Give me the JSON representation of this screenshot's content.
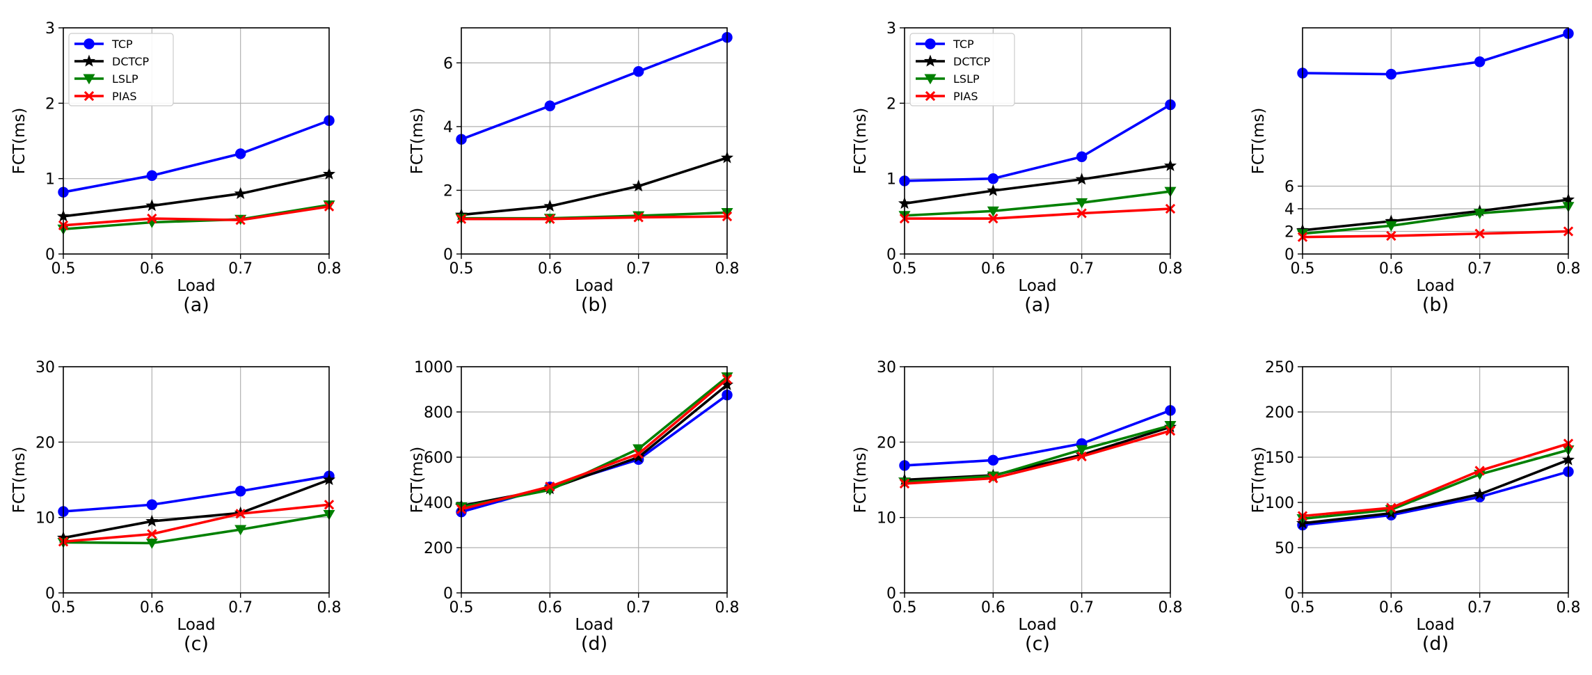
{
  "legend_entries": [
    {
      "name": "TCP",
      "color": "#0000ff",
      "marker": "circle"
    },
    {
      "name": "DCTCP",
      "color": "#000000",
      "marker": "star"
    },
    {
      "name": "LSLP",
      "color": "#008000",
      "marker": "triangle-down"
    },
    {
      "name": "PIAS",
      "color": "#ff0000",
      "marker": "x"
    }
  ],
  "chart_data": [
    {
      "type": "line",
      "caption": "(a)",
      "xlabel": "Load",
      "ylabel": "FCT(ms)",
      "x": [
        0.5,
        0.6,
        0.7,
        0.8
      ],
      "xlim": [
        0.5,
        0.8
      ],
      "xticks": [
        "0.5",
        "0.6",
        "0.7",
        "0.8"
      ],
      "ylim": [
        0,
        3
      ],
      "yticks": [
        0,
        1,
        2,
        3
      ],
      "grid": true,
      "legend": "top-left",
      "series": [
        {
          "name": "TCP",
          "values": [
            0.82,
            1.04,
            1.33,
            1.77
          ]
        },
        {
          "name": "DCTCP",
          "values": [
            0.5,
            0.64,
            0.8,
            1.06
          ]
        },
        {
          "name": "LSLP",
          "values": [
            0.33,
            0.42,
            0.46,
            0.65
          ]
        },
        {
          "name": "PIAS",
          "values": [
            0.38,
            0.47,
            0.45,
            0.63
          ]
        }
      ]
    },
    {
      "type": "line",
      "caption": "(b)",
      "xlabel": "Load",
      "ylabel": "FCT(ms)",
      "x": [
        0.5,
        0.6,
        0.7,
        0.8
      ],
      "xlim": [
        0.5,
        0.8
      ],
      "xticks": [
        "0.5",
        "0.6",
        "0.7",
        "0.8"
      ],
      "ylim": [
        0,
        7.1
      ],
      "yticks": [
        0,
        2,
        4,
        6
      ],
      "grid": true,
      "series": [
        {
          "name": "TCP",
          "values": [
            3.6,
            4.65,
            5.73,
            6.8
          ]
        },
        {
          "name": "DCTCP",
          "values": [
            1.23,
            1.5,
            2.13,
            3.02
          ]
        },
        {
          "name": "LSLP",
          "values": [
            1.12,
            1.12,
            1.2,
            1.3
          ]
        },
        {
          "name": "PIAS",
          "values": [
            1.1,
            1.1,
            1.15,
            1.18
          ]
        }
      ]
    },
    {
      "type": "line",
      "caption": "(a)",
      "xlabel": "Load",
      "ylabel": "FCT(ms)",
      "x": [
        0.5,
        0.6,
        0.7,
        0.8
      ],
      "xlim": [
        0.5,
        0.8
      ],
      "xticks": [
        "0.5",
        "0.6",
        "0.7",
        "0.8"
      ],
      "ylim": [
        0,
        3
      ],
      "yticks": [
        0,
        1,
        2,
        3
      ],
      "grid": true,
      "legend": "top-left",
      "series": [
        {
          "name": "TCP",
          "values": [
            0.97,
            1.0,
            1.29,
            1.98
          ]
        },
        {
          "name": "DCTCP",
          "values": [
            0.67,
            0.84,
            0.99,
            1.17
          ]
        },
        {
          "name": "LSLP",
          "values": [
            0.51,
            0.57,
            0.68,
            0.83
          ]
        },
        {
          "name": "PIAS",
          "values": [
            0.47,
            0.47,
            0.54,
            0.6
          ]
        }
      ]
    },
    {
      "type": "line",
      "caption": "(b)",
      "xlabel": "Load",
      "ylabel": "FCT(ms)",
      "x": [
        0.5,
        0.6,
        0.7,
        0.8
      ],
      "xlim": [
        0.5,
        0.8
      ],
      "xticks": [
        "0.5",
        "0.6",
        "0.7",
        "0.8"
      ],
      "ylim": [
        0,
        20
      ],
      "yticks": [
        0,
        2,
        4,
        6
      ],
      "grid": true,
      "series": [
        {
          "name": "TCP",
          "values": [
            16.0,
            15.9,
            17.0,
            19.5
          ]
        },
        {
          "name": "DCTCP",
          "values": [
            2.1,
            2.9,
            3.8,
            4.8
          ]
        },
        {
          "name": "LSLP",
          "values": [
            1.8,
            2.5,
            3.6,
            4.2
          ]
        },
        {
          "name": "PIAS",
          "values": [
            1.5,
            1.6,
            1.8,
            2.0
          ]
        }
      ]
    },
    {
      "type": "line",
      "caption": "(c)",
      "xlabel": "Load",
      "ylabel": "FCT(ms)",
      "x": [
        0.5,
        0.6,
        0.7,
        0.8
      ],
      "xlim": [
        0.5,
        0.8
      ],
      "xticks": [
        "0.5",
        "0.6",
        "0.7",
        "0.8"
      ],
      "ylim": [
        0,
        30
      ],
      "yticks": [
        0,
        10,
        20,
        30
      ],
      "grid": true,
      "series": [
        {
          "name": "TCP",
          "values": [
            10.8,
            11.7,
            13.5,
            15.5
          ]
        },
        {
          "name": "DCTCP",
          "values": [
            7.3,
            9.5,
            10.6,
            15.0
          ]
        },
        {
          "name": "LSLP",
          "values": [
            6.7,
            6.6,
            8.4,
            10.4
          ]
        },
        {
          "name": "PIAS",
          "values": [
            6.8,
            7.8,
            10.5,
            11.7
          ]
        }
      ]
    },
    {
      "type": "line",
      "caption": "(d)",
      "xlabel": "Load",
      "ylabel": "FCT(ms)",
      "x": [
        0.5,
        0.6,
        0.7,
        0.8
      ],
      "xlim": [
        0.5,
        0.8
      ],
      "xticks": [
        "0.5",
        "0.6",
        "0.7",
        "0.8"
      ],
      "ylim": [
        0,
        1000
      ],
      "yticks": [
        0,
        200,
        400,
        600,
        800,
        1000
      ],
      "grid": true,
      "series": [
        {
          "name": "TCP",
          "values": [
            358,
            468,
            590,
            875
          ]
        },
        {
          "name": "DCTCP",
          "values": [
            385,
            460,
            600,
            920
          ]
        },
        {
          "name": "LSLP",
          "values": [
            380,
            455,
            637,
            955
          ]
        },
        {
          "name": "PIAS",
          "values": [
            370,
            470,
            615,
            945
          ]
        }
      ]
    },
    {
      "type": "line",
      "caption": "(c)",
      "xlabel": "Load",
      "ylabel": "FCT(ms)",
      "x": [
        0.5,
        0.6,
        0.7,
        0.8
      ],
      "xlim": [
        0.5,
        0.8
      ],
      "xticks": [
        "0.5",
        "0.6",
        "0.7",
        "0.8"
      ],
      "ylim": [
        0,
        30
      ],
      "yticks": [
        0,
        10,
        20,
        30
      ],
      "grid": true,
      "series": [
        {
          "name": "TCP",
          "values": [
            16.9,
            17.6,
            19.8,
            24.2
          ]
        },
        {
          "name": "DCTCP",
          "values": [
            15.0,
            15.6,
            18.3,
            22.0
          ]
        },
        {
          "name": "LSLP",
          "values": [
            14.7,
            15.5,
            19.0,
            22.2
          ]
        },
        {
          "name": "PIAS",
          "values": [
            14.5,
            15.2,
            18.1,
            21.5
          ]
        }
      ]
    },
    {
      "type": "line",
      "caption": "(d)",
      "xlabel": "Load",
      "ylabel": "FCT(ms)",
      "x": [
        0.5,
        0.6,
        0.7,
        0.8
      ],
      "xlim": [
        0.5,
        0.8
      ],
      "xticks": [
        "0.5",
        "0.6",
        "0.7",
        "0.8"
      ],
      "ylim": [
        0,
        250
      ],
      "yticks": [
        0,
        50,
        100,
        150,
        200,
        250
      ],
      "grid": true,
      "series": [
        {
          "name": "TCP",
          "values": [
            75,
            86,
            106,
            134
          ]
        },
        {
          "name": "DCTCP",
          "values": [
            77,
            88,
            109,
            147
          ]
        },
        {
          "name": "LSLP",
          "values": [
            82,
            92,
            131,
            158
          ]
        },
        {
          "name": "PIAS",
          "values": [
            85,
            94,
            135,
            165
          ]
        }
      ]
    }
  ]
}
